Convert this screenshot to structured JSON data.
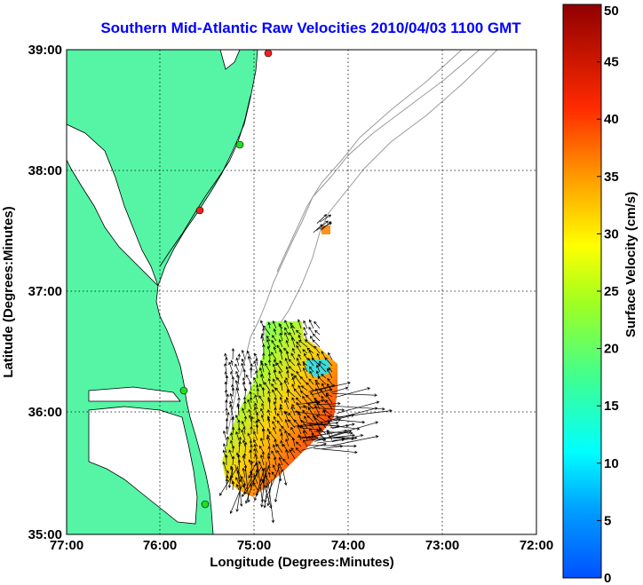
{
  "title": "Southern Mid-Atlantic Raw Velocities 2010/04/03 1100 GMT",
  "xlabel": "Longitude (Degrees:Minutes)",
  "ylabel": "Latitude (Degrees:Minutes)",
  "x_ticks": [
    "77:00",
    "76:00",
    "75:00",
    "74:00",
    "73:00",
    "72:00"
  ],
  "y_ticks": [
    "39:00",
    "38:00",
    "37:00",
    "36:00",
    "35:00"
  ],
  "colorbar": {
    "label": "Surface Velocity (cm/s)",
    "min": 0,
    "max": 50,
    "ticks": [
      "0",
      "5",
      "10",
      "15",
      "20",
      "25",
      "30",
      "35",
      "40",
      "45",
      "50"
    ]
  },
  "colors": {
    "land": "#55f5a5",
    "title": "#0000ff",
    "bathymetry": "#9a9a9a",
    "station_green": "#22dd22",
    "station_red": "#ee2222"
  }
}
